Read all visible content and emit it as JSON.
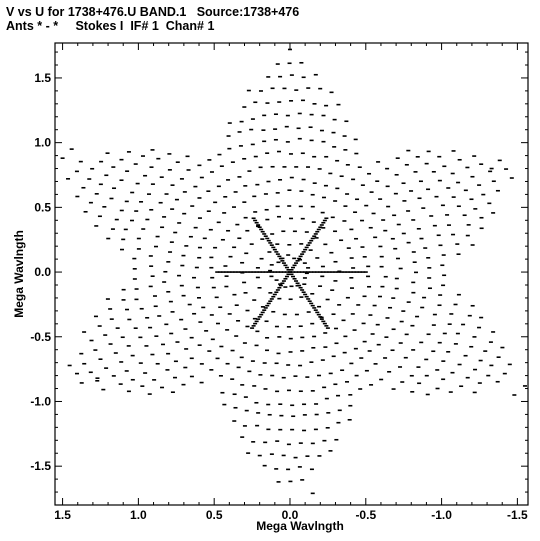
{
  "header": {
    "line1": "V vs U for 1738+476.U BAND.1   Source:1738+476",
    "line2": "Ants * - *     Stokes I  IF# 1  Chan# 1"
  },
  "chart_data": {
    "type": "scatter",
    "xlabel": "Mega Wavlngth",
    "ylabel": "Mega Wavlngth",
    "xlim": [
      1.55,
      -1.57
    ],
    "ylim": [
      -1.8,
      1.77
    ],
    "x_ticks": [
      1.5,
      1.0,
      0.5,
      0.0,
      -0.5,
      -1.0,
      -1.5
    ],
    "x_tick_labels": [
      "1.5",
      "1.0",
      "0.5",
      "0.0",
      "-0.5",
      "-1.0",
      "-1.5"
    ],
    "y_ticks": [
      1.5,
      1.0,
      0.5,
      0.0,
      -0.5,
      -1.0,
      -1.5
    ],
    "y_tick_labels": [
      "1.5",
      "1.0",
      "0.5",
      "0.0",
      "-0.5",
      "-1.0",
      "-1.5"
    ],
    "grid": false,
    "marker_color": "#000000",
    "pattern": {
      "description_values": "six-armed (Y-shaped array) uv coverage, point-symmetric",
      "arm_angles_deg": [
        90,
        210,
        330
      ],
      "spokes_angles_deg": [
        0,
        60,
        120
      ],
      "radii": [
        0.12,
        0.2,
        0.3,
        0.4,
        0.5,
        0.6,
        0.7,
        0.8,
        0.9,
        1.0,
        1.1,
        1.2,
        1.3,
        1.4,
        1.5,
        1.6,
        1.7
      ],
      "outer_points": [
        {
          "u": 1.5,
          "v": 0.88
        },
        {
          "u": 1.44,
          "v": 0.95
        },
        {
          "u": 1.27,
          "v": -0.82
        },
        {
          "u": -1.33,
          "v": 0.8
        },
        {
          "u": -1.55,
          "v": -0.88
        },
        {
          "u": -1.48,
          "v": -0.95
        },
        {
          "u": 0.0,
          "v": 1.72
        },
        {
          "u": -0.15,
          "v": -1.71
        }
      ]
    }
  }
}
